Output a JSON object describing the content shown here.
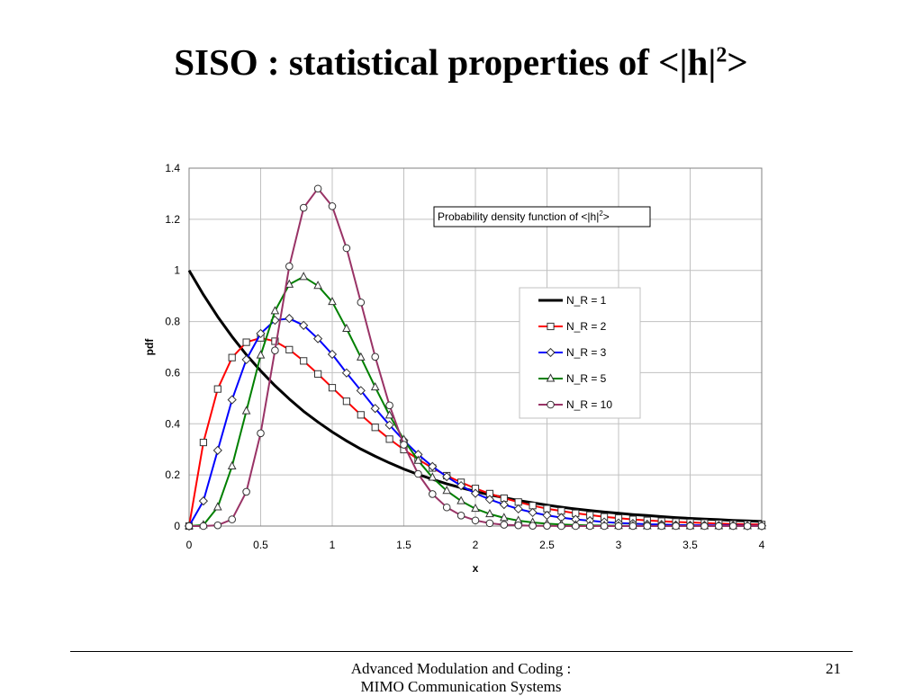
{
  "slide": {
    "title_text": "SISO : statistical properties of <|h|",
    "title_sup": "2",
    "title_end": ">",
    "footer_line1": "Advanced Modulation and Coding :",
    "footer_line2": "MIMO Communication Systems",
    "page_number": "21"
  },
  "chart_data": {
    "type": "line",
    "annotation": {
      "text": "Probability density function of <|h|",
      "sup": "2",
      "end": ">"
    },
    "xlabel": "x",
    "ylabel": "pdf",
    "xlim": [
      0,
      4
    ],
    "ylim": [
      0,
      1.4
    ],
    "xticks": [
      "0",
      "0.5",
      "1",
      "1.5",
      "2",
      "2.5",
      "3",
      "3.5",
      "4"
    ],
    "yticks": [
      "0",
      "0.2",
      "0.4",
      "0.6",
      "0.8",
      "1",
      "1.2",
      "1.4"
    ],
    "grid": "vertical and horizontal gridlines",
    "legend_position": "right",
    "x": [
      0,
      0.1,
      0.2,
      0.3,
      0.4,
      0.5,
      0.6,
      0.7,
      0.8,
      0.9,
      1.0,
      1.1,
      1.2,
      1.3,
      1.4,
      1.5,
      1.6,
      1.7,
      1.8,
      1.9,
      2.0,
      2.1,
      2.2,
      2.3,
      2.4,
      2.5,
      2.6,
      2.7,
      2.8,
      2.9,
      3.0,
      3.1,
      3.2,
      3.3,
      3.4,
      3.5,
      3.6,
      3.7,
      3.8,
      3.9,
      4.0
    ],
    "series": [
      {
        "name": "N_R = 1",
        "color": "#000000",
        "marker": "none",
        "values": [
          1.0,
          0.905,
          0.819,
          0.741,
          0.67,
          0.607,
          0.549,
          0.497,
          0.449,
          0.407,
          0.368,
          0.333,
          0.301,
          0.273,
          0.247,
          0.223,
          0.202,
          0.183,
          0.165,
          0.15,
          0.135,
          0.122,
          0.111,
          0.1,
          0.091,
          0.082,
          0.074,
          0.067,
          0.061,
          0.055,
          0.05,
          0.045,
          0.041,
          0.037,
          0.033,
          0.03,
          0.027,
          0.025,
          0.022,
          0.02,
          0.018
        ]
      },
      {
        "name": "N_R = 2",
        "color": "#ff0000",
        "marker": "square",
        "values": [
          0.0,
          0.327,
          0.536,
          0.659,
          0.719,
          0.736,
          0.723,
          0.69,
          0.646,
          0.595,
          0.541,
          0.488,
          0.435,
          0.386,
          0.34,
          0.299,
          0.261,
          0.227,
          0.197,
          0.171,
          0.147,
          0.127,
          0.109,
          0.094,
          0.08,
          0.068,
          0.059,
          0.05,
          0.043,
          0.036,
          0.031,
          0.026,
          0.022,
          0.019,
          0.016,
          0.014,
          0.012,
          0.01,
          0.008,
          0.007,
          0.006
        ]
      },
      {
        "name": "N_R = 3",
        "color": "#0000ff",
        "marker": "diamond",
        "values": [
          0.0,
          0.098,
          0.296,
          0.494,
          0.651,
          0.753,
          0.805,
          0.812,
          0.785,
          0.733,
          0.672,
          0.599,
          0.53,
          0.46,
          0.395,
          0.335,
          0.28,
          0.233,
          0.193,
          0.158,
          0.128,
          0.104,
          0.084,
          0.067,
          0.053,
          0.042,
          0.033,
          0.026,
          0.021,
          0.016,
          0.012,
          0.01,
          0.007,
          0.006,
          0.004,
          0.003,
          0.003,
          0.002,
          0.002,
          0.001,
          0.001
        ]
      },
      {
        "name": "N_R = 5",
        "color": "#008000",
        "marker": "triangle",
        "values": [
          0.0,
          0.004,
          0.074,
          0.234,
          0.45,
          0.668,
          0.841,
          0.945,
          0.975,
          0.94,
          0.877,
          0.772,
          0.66,
          0.543,
          0.433,
          0.338,
          0.256,
          0.19,
          0.138,
          0.098,
          0.068,
          0.047,
          0.032,
          0.021,
          0.014,
          0.009,
          0.006,
          0.004,
          0.002,
          0.002,
          0.001,
          0.001,
          0.0,
          0.0,
          0.0,
          0.0,
          0.0,
          0.0,
          0.0,
          0.0,
          0.0
        ]
      },
      {
        "name": "N_R = 10",
        "color": "#993366",
        "marker": "circle",
        "values": [
          0.0,
          0.0,
          0.003,
          0.026,
          0.134,
          0.363,
          0.687,
          1.016,
          1.245,
          1.32,
          1.251,
          1.087,
          0.875,
          0.662,
          0.472,
          0.318,
          0.204,
          0.125,
          0.073,
          0.041,
          0.022,
          0.011,
          0.005,
          0.003,
          0.001,
          0.001,
          0.0,
          0.0,
          0.0,
          0.0,
          0.0,
          0.0,
          0.0,
          0.0,
          0.0,
          0.0,
          0.0,
          0.0,
          0.0,
          0.0,
          0.0
        ]
      }
    ]
  }
}
